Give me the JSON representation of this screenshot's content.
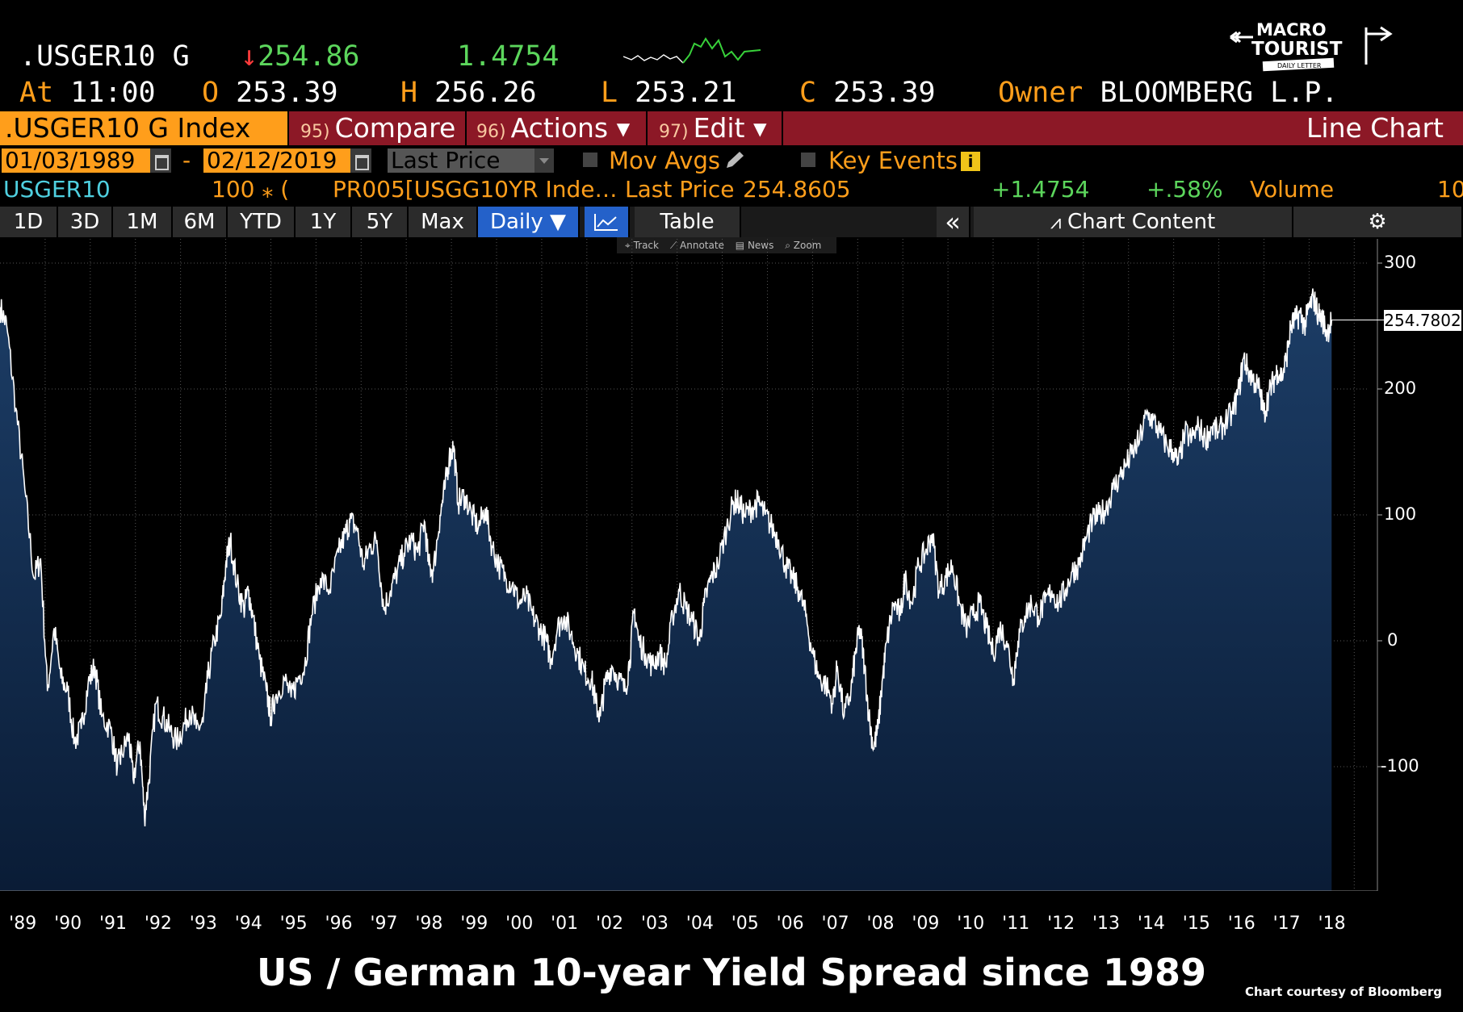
{
  "header": {
    "ticker": ".USGER10 G",
    "down_arrow": "↓",
    "last": "254.86",
    "change": "1.4754",
    "time_label": "At",
    "time": "11:00",
    "open_label": "O",
    "open": "253.39",
    "high_label": "H",
    "high": "256.26",
    "low_label": "L",
    "low": "253.21",
    "close_label": "C",
    "close": "253.39",
    "owner_label": "Owner",
    "owner": "BLOOMBERG L.P."
  },
  "logo": {
    "line1": "MACRO",
    "line2": "TOURIST",
    "line3": "DAILY LETTER"
  },
  "command_bar": {
    "security": ".USGER10 G Index",
    "compare_num": "95)",
    "compare": "Compare",
    "actions_num": "96)",
    "actions": "Actions ▾",
    "edit_num": "97)",
    "edit": "Edit ▾",
    "chart_type": "Line Chart"
  },
  "settings_row": {
    "start_date": "01/03/1989",
    "dash": "-",
    "end_date": "02/12/2019",
    "field": "Last Price",
    "mov_avgs": "Mov Avgs",
    "key_events": "Key Events"
  },
  "legend_row": {
    "security": "USGER10",
    "multiplier": "100 ⁎ (",
    "formula": "PR005[USGG10YR Inde…",
    "last_price_label": "Last Price",
    "last_price": "254.8605",
    "net_change": "+1.4754",
    "pct_change": "+.58%",
    "volume_label": "Volume",
    "volume": "10"
  },
  "buttons": {
    "ranges": [
      "1D",
      "3D",
      "1M",
      "6M",
      "YTD",
      "1Y",
      "5Y",
      "Max"
    ],
    "frequency": "Daily ▼",
    "table": "Table",
    "collapse": "«",
    "chart_content": "Chart Content"
  },
  "mini_toolbar": [
    "Track",
    "Annotate",
    "News",
    "Zoom"
  ],
  "chart_data": {
    "type": "area",
    "title": "US / German 10-year Yield Spread since 1989",
    "xlabel": "",
    "ylabel": "",
    "ylim": [
      -200,
      320
    ],
    "xlim": [
      1989.0,
      2019.12
    ],
    "y_ticks": [
      "300",
      "200",
      "100",
      "0",
      "-100"
    ],
    "x_ticks": [
      "'89",
      "'90",
      "'91",
      "'92",
      "'93",
      "'94",
      "'95",
      "'96",
      "'97",
      "'98",
      "'99",
      "'00",
      "'01",
      "'02",
      "'03",
      "'04",
      "'05",
      "'06",
      "'07",
      "'08",
      "'09",
      "'10",
      "'11",
      "'12",
      "'13",
      "'14",
      "'15",
      "'16",
      "'17",
      "'18"
    ],
    "last_value_label": "254.7802",
    "series": [
      {
        "line_color": "#ffffff",
        "fill_color": "#0f2a4f",
        "points": [
          [
            1989.0,
            265
          ],
          [
            1989.15,
            250
          ],
          [
            1989.35,
            185
          ],
          [
            1989.55,
            120
          ],
          [
            1989.75,
            50
          ],
          [
            1989.9,
            65
          ],
          [
            1990.05,
            -40
          ],
          [
            1990.2,
            10
          ],
          [
            1990.35,
            -30
          ],
          [
            1990.5,
            -40
          ],
          [
            1990.65,
            -80
          ],
          [
            1990.8,
            -70
          ],
          [
            1990.95,
            -35
          ],
          [
            1991.1,
            -20
          ],
          [
            1991.25,
            -60
          ],
          [
            1991.45,
            -70
          ],
          [
            1991.6,
            -100
          ],
          [
            1991.7,
            -90
          ],
          [
            1991.85,
            -75
          ],
          [
            1991.95,
            -110
          ],
          [
            1992.1,
            -80
          ],
          [
            1992.2,
            -140
          ],
          [
            1992.3,
            -110
          ],
          [
            1992.45,
            -50
          ],
          [
            1992.6,
            -60
          ],
          [
            1992.75,
            -70
          ],
          [
            1992.9,
            -80
          ],
          [
            1993.05,
            -70
          ],
          [
            1993.2,
            -55
          ],
          [
            1993.35,
            -70
          ],
          [
            1993.5,
            -65
          ],
          [
            1993.6,
            -30
          ],
          [
            1993.75,
            0
          ],
          [
            1993.9,
            20
          ],
          [
            1994.0,
            60
          ],
          [
            1994.1,
            80
          ],
          [
            1994.25,
            45
          ],
          [
            1994.4,
            25
          ],
          [
            1994.5,
            40
          ],
          [
            1994.6,
            20
          ],
          [
            1994.75,
            -15
          ],
          [
            1994.9,
            -40
          ],
          [
            1995.0,
            -60
          ],
          [
            1995.1,
            -45
          ],
          [
            1995.3,
            -30
          ],
          [
            1995.45,
            -45
          ],
          [
            1995.6,
            -30
          ],
          [
            1995.75,
            -20
          ],
          [
            1995.9,
            20
          ],
          [
            1996.1,
            50
          ],
          [
            1996.3,
            40
          ],
          [
            1996.5,
            70
          ],
          [
            1996.65,
            85
          ],
          [
            1996.75,
            95
          ],
          [
            1996.9,
            90
          ],
          [
            1997.05,
            60
          ],
          [
            1997.2,
            75
          ],
          [
            1997.35,
            80
          ],
          [
            1997.5,
            25
          ],
          [
            1997.65,
            40
          ],
          [
            1997.8,
            55
          ],
          [
            1997.95,
            70
          ],
          [
            1998.1,
            80
          ],
          [
            1998.25,
            70
          ],
          [
            1998.4,
            95
          ],
          [
            1998.5,
            60
          ],
          [
            1998.6,
            55
          ],
          [
            1998.75,
            100
          ],
          [
            1998.85,
            120
          ],
          [
            1998.95,
            145
          ],
          [
            1999.05,
            155
          ],
          [
            1999.15,
            110
          ],
          [
            1999.3,
            115
          ],
          [
            1999.45,
            100
          ],
          [
            1999.6,
            90
          ],
          [
            1999.75,
            105
          ],
          [
            1999.9,
            75
          ],
          [
            2000.05,
            60
          ],
          [
            2000.2,
            50
          ],
          [
            2000.35,
            45
          ],
          [
            2000.5,
            30
          ],
          [
            2000.65,
            35
          ],
          [
            2000.8,
            20
          ],
          [
            2000.95,
            10
          ],
          [
            2001.1,
            0
          ],
          [
            2001.2,
            -15
          ],
          [
            2001.35,
            10
          ],
          [
            2001.5,
            20
          ],
          [
            2001.65,
            5
          ],
          [
            2001.8,
            -10
          ],
          [
            2001.95,
            -25
          ],
          [
            2002.1,
            -30
          ],
          [
            2002.2,
            -50
          ],
          [
            2002.3,
            -60
          ],
          [
            2002.4,
            -35
          ],
          [
            2002.55,
            -20
          ],
          [
            2002.7,
            -30
          ],
          [
            2002.85,
            -40
          ],
          [
            2002.95,
            -15
          ],
          [
            2003.05,
            25
          ],
          [
            2003.15,
            0
          ],
          [
            2003.3,
            -10
          ],
          [
            2003.45,
            -20
          ],
          [
            2003.6,
            -10
          ],
          [
            2003.75,
            -20
          ],
          [
            2003.9,
            20
          ],
          [
            2004.05,
            40
          ],
          [
            2004.2,
            25
          ],
          [
            2004.35,
            15
          ],
          [
            2004.5,
            0
          ],
          [
            2004.6,
            30
          ],
          [
            2004.75,
            50
          ],
          [
            2004.9,
            60
          ],
          [
            2005.1,
            90
          ],
          [
            2005.25,
            110
          ],
          [
            2005.35,
            110
          ],
          [
            2005.5,
            100
          ],
          [
            2005.65,
            105
          ],
          [
            2005.8,
            110
          ],
          [
            2005.95,
            100
          ],
          [
            2006.1,
            90
          ],
          [
            2006.25,
            80
          ],
          [
            2006.4,
            60
          ],
          [
            2006.55,
            50
          ],
          [
            2006.7,
            40
          ],
          [
            2006.85,
            20
          ],
          [
            2007.0,
            -10
          ],
          [
            2007.15,
            -30
          ],
          [
            2007.3,
            -35
          ],
          [
            2007.45,
            -50
          ],
          [
            2007.55,
            -20
          ],
          [
            2007.7,
            -60
          ],
          [
            2007.85,
            -40
          ],
          [
            2007.95,
            -10
          ],
          [
            2008.05,
            10
          ],
          [
            2008.15,
            -20
          ],
          [
            2008.25,
            -60
          ],
          [
            2008.35,
            -85
          ],
          [
            2008.45,
            -70
          ],
          [
            2008.55,
            -30
          ],
          [
            2008.65,
            0
          ],
          [
            2008.8,
            30
          ],
          [
            2008.95,
            20
          ],
          [
            2009.05,
            50
          ],
          [
            2009.2,
            30
          ],
          [
            2009.35,
            60
          ],
          [
            2009.5,
            70
          ],
          [
            2009.65,
            85
          ],
          [
            2009.8,
            40
          ],
          [
            2009.95,
            50
          ],
          [
            2010.1,
            60
          ],
          [
            2010.25,
            30
          ],
          [
            2010.4,
            10
          ],
          [
            2010.55,
            20
          ],
          [
            2010.7,
            30
          ],
          [
            2010.85,
            10
          ],
          [
            2011.0,
            -10
          ],
          [
            2011.15,
            10
          ],
          [
            2011.3,
            0
          ],
          [
            2011.45,
            -30
          ],
          [
            2011.55,
            0
          ],
          [
            2011.7,
            20
          ],
          [
            2011.85,
            30
          ],
          [
            2012.0,
            20
          ],
          [
            2012.15,
            30
          ],
          [
            2012.3,
            40
          ],
          [
            2012.45,
            30
          ],
          [
            2012.6,
            40
          ],
          [
            2012.75,
            55
          ],
          [
            2012.9,
            60
          ],
          [
            2013.05,
            80
          ],
          [
            2013.2,
            95
          ],
          [
            2013.35,
            100
          ],
          [
            2013.5,
            105
          ],
          [
            2013.65,
            120
          ],
          [
            2013.8,
            130
          ],
          [
            2013.95,
            140
          ],
          [
            2014.1,
            150
          ],
          [
            2014.25,
            160
          ],
          [
            2014.4,
            180
          ],
          [
            2014.55,
            175
          ],
          [
            2014.7,
            165
          ],
          [
            2014.85,
            155
          ],
          [
            2015.0,
            150
          ],
          [
            2015.1,
            140
          ],
          [
            2015.25,
            165
          ],
          [
            2015.4,
            160
          ],
          [
            2015.55,
            170
          ],
          [
            2015.7,
            160
          ],
          [
            2015.85,
            170
          ],
          [
            2016.0,
            165
          ],
          [
            2016.15,
            175
          ],
          [
            2016.3,
            180
          ],
          [
            2016.45,
            200
          ],
          [
            2016.55,
            225
          ],
          [
            2016.65,
            215
          ],
          [
            2016.8,
            205
          ],
          [
            2016.9,
            200
          ],
          [
            2017.0,
            180
          ],
          [
            2017.1,
            195
          ],
          [
            2017.2,
            205
          ],
          [
            2017.3,
            215
          ],
          [
            2017.4,
            210
          ],
          [
            2017.5,
            225
          ],
          [
            2017.6,
            250
          ],
          [
            2017.7,
            255
          ],
          [
            2017.8,
            260
          ],
          [
            2017.9,
            250
          ],
          [
            2018.0,
            265
          ],
          [
            2018.1,
            272
          ],
          [
            2018.2,
            260
          ],
          [
            2018.3,
            255
          ],
          [
            2018.4,
            245
          ],
          [
            2018.5,
            255
          ]
        ]
      }
    ]
  }
}
